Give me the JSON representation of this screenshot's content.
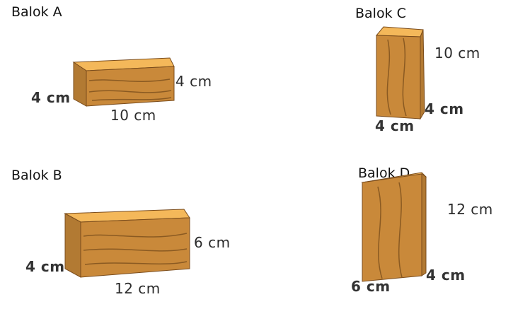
{
  "colors": {
    "wood_top": "#f4b85a",
    "wood_front": "#c9893a",
    "wood_side": "#b27a33",
    "wood_grain": "#8a5a22",
    "edge": "#7a4c1c"
  },
  "blocks": [
    {
      "id": "a",
      "title": "Balok A",
      "length": "10 cm",
      "width": "4 cm",
      "height": "4 cm"
    },
    {
      "id": "b",
      "title": "Balok B",
      "length": "12 cm",
      "width": "4 cm",
      "height": "6 cm"
    },
    {
      "id": "c",
      "title": "Balok C",
      "base_front": "4 cm",
      "base_side": "4 cm",
      "height": "10 cm"
    },
    {
      "id": "d",
      "title": "Balok D",
      "base_front": "6 cm",
      "base_side": "4 cm",
      "height": "12 cm"
    }
  ]
}
